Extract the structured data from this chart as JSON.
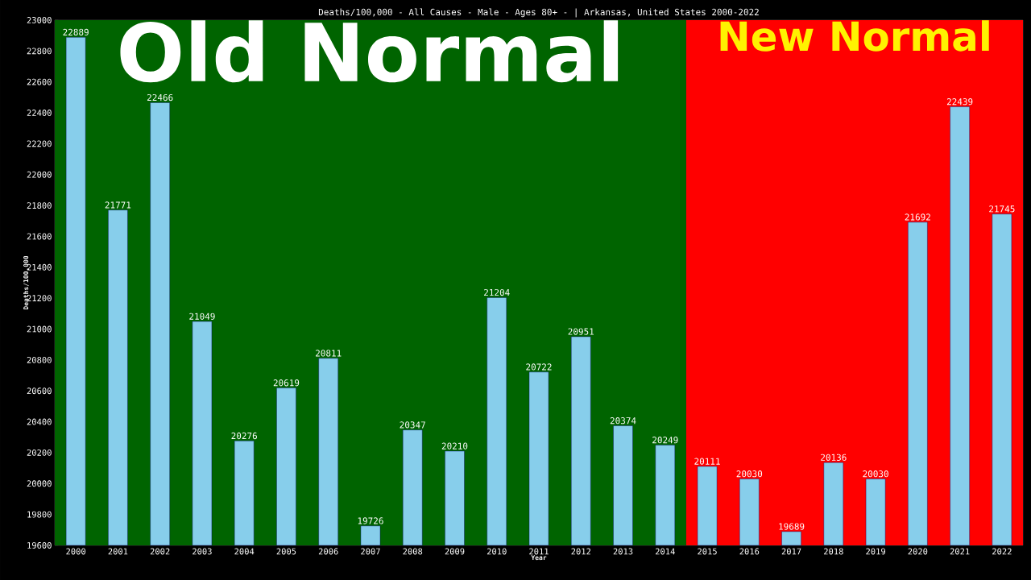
{
  "chart_data": {
    "type": "bar",
    "title": "Deaths/100,000 - All Causes - Male - Ages 80+ - | Arkansas, United States 2000-2022",
    "xlabel": "Year",
    "ylabel": "Deaths/100,000",
    "categories": [
      "2000",
      "2001",
      "2002",
      "2003",
      "2004",
      "2005",
      "2006",
      "2007",
      "2008",
      "2009",
      "2010",
      "2011",
      "2012",
      "2013",
      "2014",
      "2015",
      "2016",
      "2017",
      "2018",
      "2019",
      "2020",
      "2021",
      "2022"
    ],
    "values": [
      22889,
      21771,
      22466,
      21049,
      20276,
      20619,
      20811,
      19726,
      20347,
      20210,
      21204,
      20722,
      20951,
      20374,
      20249,
      20111,
      20030,
      19689,
      20136,
      20030,
      21692,
      22439,
      21745
    ],
    "color": "#87ceeb",
    "data_labels": true,
    "ylim": [
      19600,
      23000
    ],
    "yticks": [
      19600,
      19800,
      20000,
      20200,
      20400,
      20600,
      20800,
      21000,
      21200,
      21400,
      21600,
      21800,
      22000,
      22200,
      22400,
      22600,
      22800,
      23000
    ],
    "bands": [
      {
        "axis": "x",
        "from": "2000",
        "to": "2014",
        "label": "Old Normal",
        "color": "#006400"
      },
      {
        "axis": "x",
        "from": "2015",
        "to": "2022",
        "label": "New Normal",
        "color": "#ff0000"
      }
    ]
  }
}
